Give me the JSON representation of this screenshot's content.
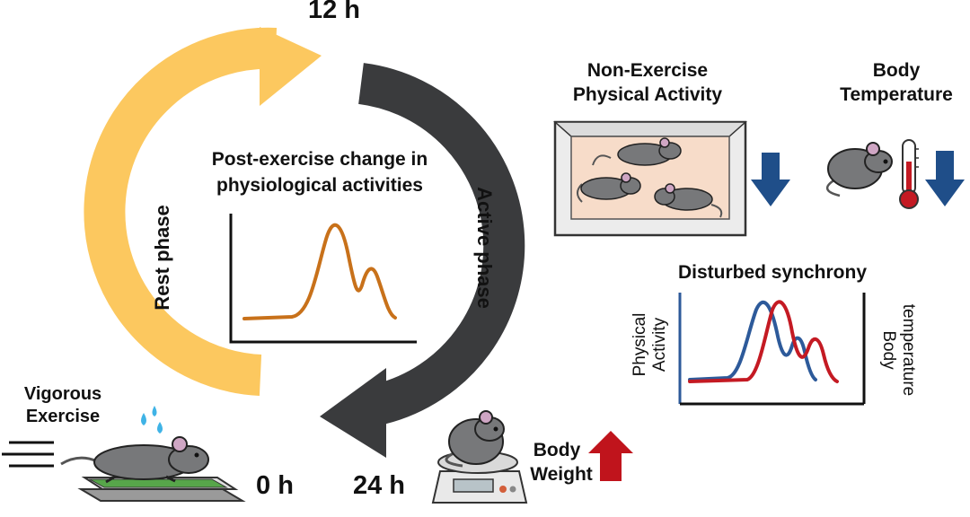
{
  "cycle": {
    "time_12h": "12 h",
    "time_0h": "0 h",
    "time_24h": "24 h",
    "rest_phase": "Rest phase",
    "active_phase": "Active phase",
    "rest_color": "#fcc85f",
    "active_color": "#3a3b3d"
  },
  "center_panel": {
    "title_line1": "Post-exercise change in",
    "title_line2": "physiological activities",
    "curve_color": "#c8711a"
  },
  "exercise": {
    "label_line1": "Vigorous",
    "label_line2": "Exercise"
  },
  "body_weight": {
    "label_line1": "Body",
    "label_line2": "Weight",
    "direction": "up",
    "arrow_color": "#c0141c"
  },
  "neat": {
    "label_line1": "Non-Exercise",
    "label_line2": "Physical Activity",
    "direction": "down",
    "arrow_color": "#1f4e89"
  },
  "body_temperature": {
    "label_line1": "Body",
    "label_line2": "Temperature",
    "direction": "down",
    "arrow_color": "#1f4e89"
  },
  "synchrony": {
    "title": "Disturbed synchrony",
    "left_axis_line1": "Physical",
    "left_axis_line2": "Activity",
    "right_axis_line1": "Body",
    "right_axis_line2": "temperature",
    "activity_color": "#2d5a9a",
    "temperature_color": "#c41a23"
  }
}
